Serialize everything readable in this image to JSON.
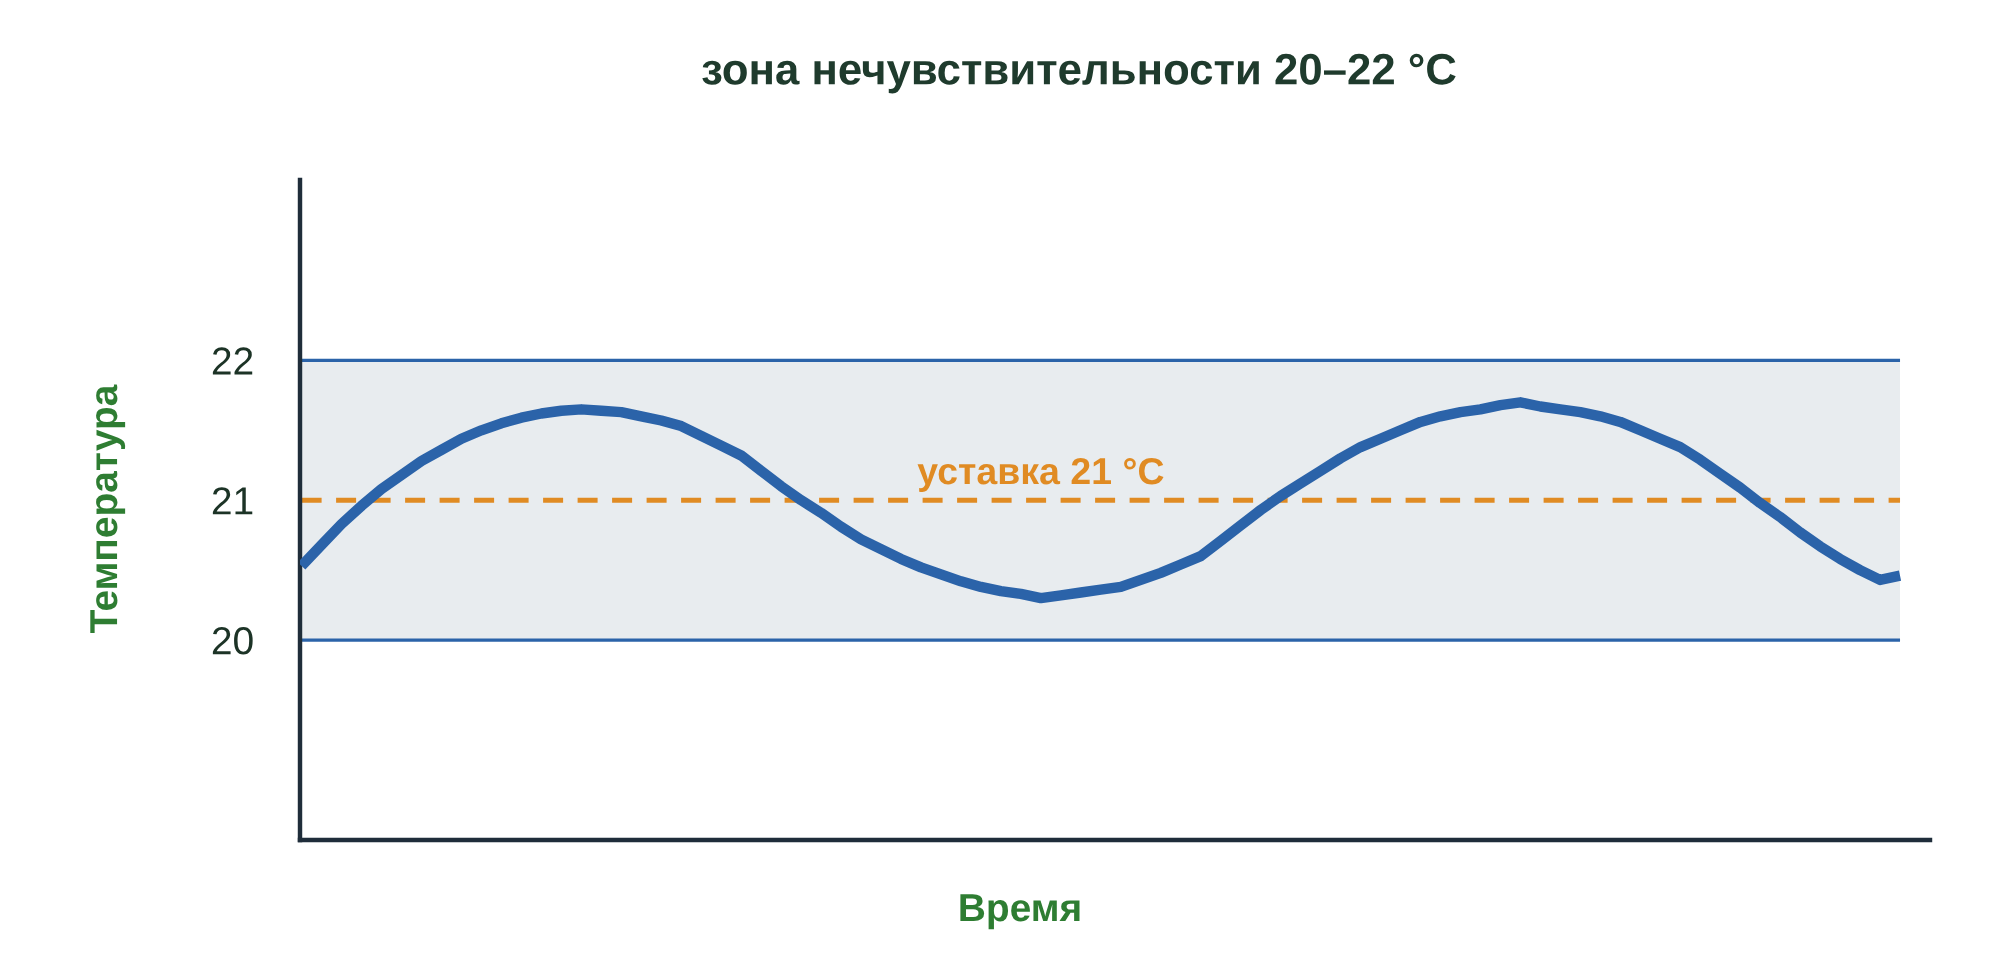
{
  "chart_data": {
    "type": "line",
    "title": "зона нечувствительности 20–22 °C",
    "xlabel": "Время",
    "ylabel": "Температура",
    "categories": [
      null,
      null,
      null,
      null,
      null,
      null,
      null,
      null,
      null,
      null,
      null,
      null,
      null,
      null,
      null,
      null,
      null,
      null,
      null,
      null,
      null,
      null,
      null,
      null,
      null,
      null,
      null,
      null,
      null,
      null,
      null,
      null,
      null,
      null,
      null,
      null,
      null,
      null,
      null,
      null,
      null,
      null,
      null,
      null,
      null,
      null,
      null,
      null,
      null,
      null,
      null,
      null,
      null,
      null,
      null,
      null,
      null,
      null,
      null,
      null,
      null,
      null,
      null,
      null,
      null,
      null,
      null,
      null,
      null,
      null,
      null,
      null,
      null,
      null,
      null,
      null,
      null,
      null,
      null,
      null,
      null
    ],
    "series": [
      {
        "color": "#2b63a9",
        "values": [
          20.53,
          20.68,
          20.83,
          20.96,
          21.08,
          21.18,
          21.28,
          21.36,
          21.44,
          21.5,
          21.55,
          21.59,
          21.62,
          21.64,
          21.65,
          21.64,
          21.63,
          21.6,
          21.57,
          21.53,
          21.46,
          21.39,
          21.32,
          21.21,
          21.1,
          21.0,
          20.91,
          20.81,
          20.72,
          20.65,
          20.58,
          20.52,
          20.47,
          20.42,
          20.38,
          20.35,
          20.33,
          20.3,
          20.32,
          20.34,
          20.36,
          20.38,
          20.43,
          20.48,
          20.54,
          20.6,
          20.71,
          20.82,
          20.93,
          21.03,
          21.12,
          21.21,
          21.3,
          21.38,
          21.44,
          21.5,
          21.56,
          21.6,
          21.63,
          21.65,
          21.68,
          21.7,
          21.67,
          21.65,
          21.63,
          21.6,
          21.56,
          21.5,
          21.44,
          21.38,
          21.29,
          21.19,
          21.09,
          20.98,
          20.88,
          20.77,
          20.67,
          20.58,
          20.5,
          20.43,
          20.46
        ]
      }
    ],
    "ylim": [
      18.57,
      23.29
    ],
    "yticks": [
      20,
      21,
      22
    ],
    "tick_labels": "y",
    "marker": "none",
    "line_style": "solid",
    "ref_lines": [
      {
        "axis": "y",
        "value": 21,
        "label": "уставка 21 °C",
        "color": "#e08b23",
        "line_style": "dashed"
      },
      {
        "axis": "y",
        "value": 20,
        "color": "#2b63a9",
        "line_style": "solid"
      },
      {
        "axis": "y",
        "value": 22,
        "color": "#2b63a9",
        "line_style": "solid"
      }
    ],
    "bands": [
      {
        "axis": "y",
        "from": 20,
        "to": 22,
        "color": "#e8ecef"
      }
    ]
  }
}
